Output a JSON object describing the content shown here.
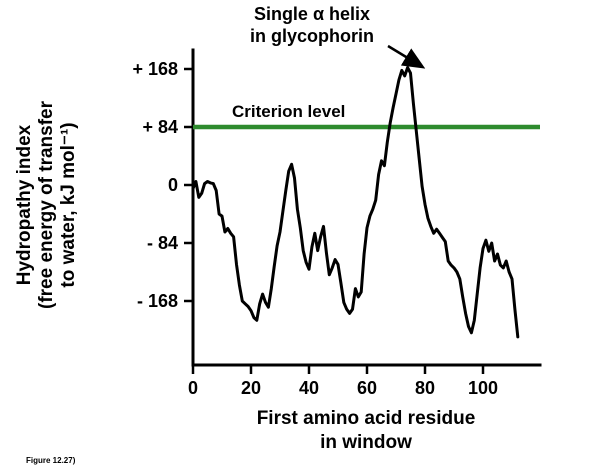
{
  "figure": {
    "caption": "Figure 12.27)"
  },
  "colors": {
    "curve": "#000000",
    "criterion_line": "#2e8b2e",
    "text": "#000000",
    "background": "#ffffff"
  },
  "chart_data": {
    "type": "line",
    "title": "",
    "xlabel_lines": [
      "First amino acid residue",
      "in window"
    ],
    "ylabel_lines": [
      "Hydropathy index",
      "(free energy of transfer",
      "to water, kJ mol⁻¹)"
    ],
    "annotation_lines": [
      "Single α helix",
      "in glycophorin"
    ],
    "criterion_label": "Criterion level",
    "criterion_level": 84,
    "legend": "none",
    "grid": false,
    "xlim": [
      0,
      120
    ],
    "ylim": [
      -265,
      195
    ],
    "x_ticks": [
      0,
      20,
      40,
      60,
      80,
      100
    ],
    "y_ticks": [
      168,
      84,
      0,
      -84,
      -168
    ],
    "y_tick_labels": [
      "+ 168",
      "+ 84",
      "0",
      "- 84",
      "- 168"
    ],
    "series": [
      {
        "name": "hydropathy index",
        "x": [
          0,
          1,
          2,
          3,
          4,
          5,
          6,
          7,
          8,
          9,
          10,
          11,
          12,
          13,
          14,
          15,
          16,
          17,
          18,
          19,
          20,
          21,
          22,
          23,
          24,
          25,
          26,
          27,
          28,
          29,
          30,
          31,
          32,
          33,
          34,
          35,
          36,
          37,
          38,
          39,
          40,
          41,
          42,
          43,
          44,
          45,
          46,
          47,
          48,
          49,
          50,
          51,
          52,
          53,
          54,
          55,
          56,
          57,
          58,
          59,
          60,
          61,
          62,
          63,
          64,
          65,
          66,
          67,
          68,
          69,
          70,
          71,
          72,
          73,
          74,
          75,
          76,
          77,
          78,
          79,
          80,
          81,
          82,
          83,
          84,
          85,
          86,
          87,
          88,
          89,
          90,
          91,
          92,
          93,
          94,
          95,
          96,
          97,
          98,
          99,
          100,
          101,
          102,
          103,
          104,
          105,
          106,
          107,
          108,
          109,
          110,
          111,
          112
        ],
        "y": [
          -5,
          5,
          -18,
          -12,
          2,
          5,
          3,
          2,
          -8,
          -42,
          -45,
          -68,
          -63,
          -70,
          -75,
          -115,
          -145,
          -168,
          -172,
          -176,
          -182,
          -192,
          -196,
          -172,
          -158,
          -170,
          -177,
          -150,
          -118,
          -88,
          -68,
          -38,
          -8,
          20,
          30,
          10,
          -35,
          -62,
          -95,
          -112,
          -122,
          -90,
          -70,
          -95,
          -75,
          -60,
          -98,
          -130,
          -120,
          -108,
          -115,
          -142,
          -170,
          -180,
          -186,
          -180,
          -150,
          -162,
          -155,
          -100,
          -62,
          -45,
          -35,
          -22,
          15,
          35,
          28,
          62,
          90,
          112,
          132,
          152,
          166,
          158,
          170,
          162,
          118,
          78,
          38,
          -2,
          -28,
          -48,
          -60,
          -70,
          -64,
          -70,
          -76,
          -82,
          -110,
          -116,
          -120,
          -126,
          -136,
          -162,
          -186,
          -205,
          -214,
          -196,
          -158,
          -120,
          -92,
          -80,
          -96,
          -84,
          -110,
          -100,
          -116,
          -120,
          -110,
          -126,
          -136,
          -180,
          -220
        ]
      }
    ]
  }
}
